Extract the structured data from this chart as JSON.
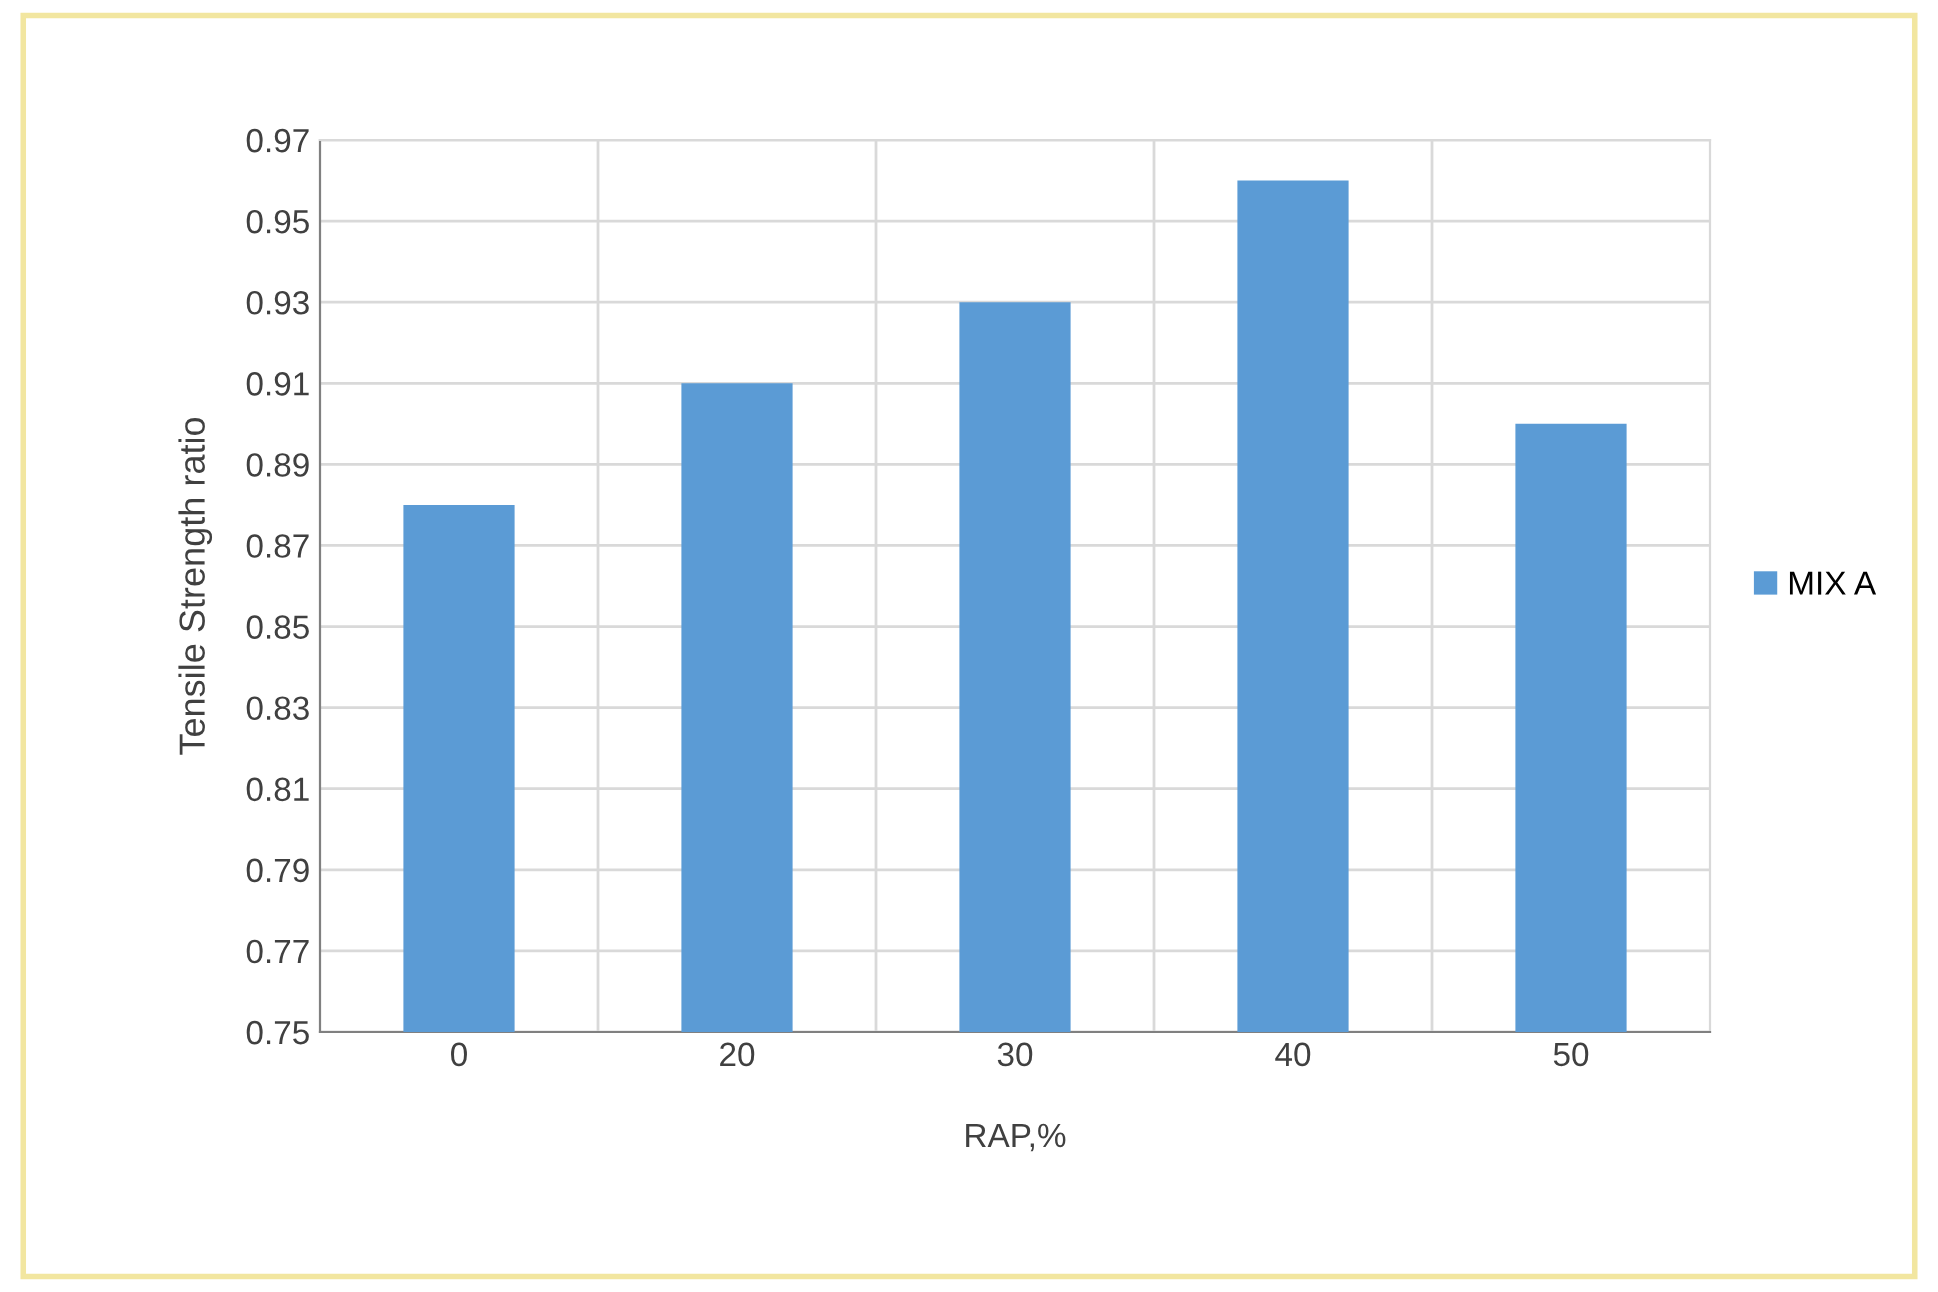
{
  "chart_data": {
    "type": "bar",
    "xlabel": "RAP,%",
    "ylabel": "Tensile Strength ratio",
    "categories": [
      "0",
      "20",
      "30",
      "40",
      "50"
    ],
    "series": [
      {
        "name": "MIX A",
        "color": "#5b9bd5",
        "values": [
          0.88,
          0.91,
          0.93,
          0.96,
          0.9
        ]
      }
    ],
    "ylim": [
      0.75,
      0.97
    ],
    "yticks": [
      0.75,
      0.77,
      0.79,
      0.81,
      0.83,
      0.85,
      0.87,
      0.89,
      0.91,
      0.93,
      0.95,
      0.97
    ],
    "grid": true,
    "legend": "right"
  }
}
